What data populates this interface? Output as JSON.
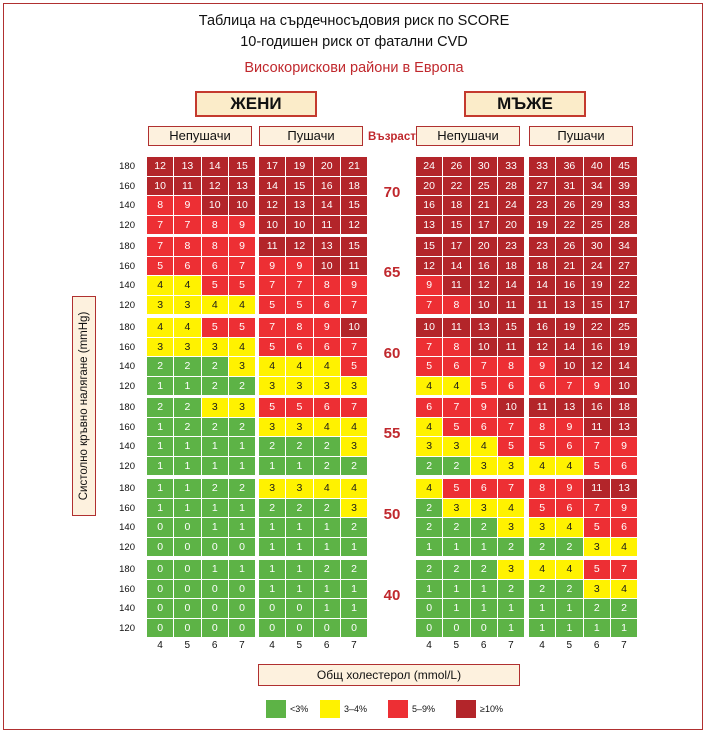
{
  "chart_data": {
    "type": "table",
    "title_line1": "Таблица на сърдечносъдовия риск по SCORE",
    "title_line2": "10-годишен риск от фатални CVD",
    "subtitle": "Високорискови райони в Европа",
    "gender_labels": {
      "women": "ЖЕНИ",
      "men": "МЪЖЕ"
    },
    "smoking_labels": {
      "nonsmoker": "Непушачи",
      "smoker": "Пушачи"
    },
    "age_header": "Възраст",
    "ylabel": "Систолно кръвно налягане (mmHg)",
    "xlabel": "Общ холестерол (mmol/L)",
    "bp_levels": [
      "180",
      "160",
      "140",
      "120"
    ],
    "cholesterol_levels": [
      "4",
      "5",
      "6",
      "7"
    ],
    "ages": [
      "70",
      "65",
      "60",
      "55",
      "50",
      "40"
    ],
    "legend": [
      {
        "label": "<3%",
        "color": "#5db346"
      },
      {
        "label": "3–4%",
        "color": "#fff200"
      },
      {
        "label": "5–9%",
        "color": "#ed2f34"
      },
      {
        "label": "≥10%",
        "color": "#b3252a"
      }
    ],
    "grids": {
      "women_nonsmoker": [
        [
          [
            12,
            13,
            14,
            15
          ],
          [
            10,
            11,
            12,
            13
          ],
          [
            8,
            9,
            10,
            10
          ],
          [
            7,
            7,
            8,
            9
          ]
        ],
        [
          [
            7,
            8,
            8,
            9
          ],
          [
            5,
            6,
            6,
            7
          ],
          [
            4,
            4,
            5,
            5
          ],
          [
            3,
            3,
            4,
            4
          ]
        ],
        [
          [
            4,
            4,
            5,
            5
          ],
          [
            3,
            3,
            3,
            4
          ],
          [
            2,
            2,
            2,
            3
          ],
          [
            1,
            1,
            2,
            2
          ]
        ],
        [
          [
            2,
            2,
            3,
            3
          ],
          [
            1,
            2,
            2,
            2
          ],
          [
            1,
            1,
            1,
            1
          ],
          [
            1,
            1,
            1,
            1
          ]
        ],
        [
          [
            1,
            1,
            2,
            2
          ],
          [
            1,
            1,
            1,
            1
          ],
          [
            0,
            0,
            1,
            1
          ],
          [
            0,
            0,
            0,
            0
          ]
        ],
        [
          [
            0,
            0,
            1,
            1
          ],
          [
            0,
            0,
            0,
            0
          ],
          [
            0,
            0,
            0,
            0
          ],
          [
            0,
            0,
            0,
            0
          ]
        ]
      ],
      "women_smoker": [
        [
          [
            17,
            19,
            20,
            21
          ],
          [
            14,
            15,
            16,
            18
          ],
          [
            12,
            13,
            14,
            15
          ],
          [
            10,
            10,
            11,
            12
          ]
        ],
        [
          [
            11,
            12,
            13,
            15
          ],
          [
            9,
            9,
            10,
            11
          ],
          [
            7,
            7,
            8,
            9
          ],
          [
            5,
            5,
            6,
            7
          ]
        ],
        [
          [
            7,
            8,
            9,
            10
          ],
          [
            5,
            6,
            6,
            7
          ],
          [
            4,
            4,
            4,
            5
          ],
          [
            3,
            3,
            3,
            3
          ]
        ],
        [
          [
            5,
            5,
            6,
            7
          ],
          [
            3,
            3,
            4,
            4
          ],
          [
            2,
            2,
            2,
            3
          ],
          [
            1,
            1,
            2,
            2
          ]
        ],
        [
          [
            3,
            3,
            4,
            4
          ],
          [
            2,
            2,
            2,
            3
          ],
          [
            1,
            1,
            1,
            2
          ],
          [
            1,
            1,
            1,
            1
          ]
        ],
        [
          [
            1,
            1,
            2,
            2
          ],
          [
            1,
            1,
            1,
            1
          ],
          [
            0,
            0,
            1,
            1
          ],
          [
            0,
            0,
            0,
            0
          ]
        ]
      ],
      "men_nonsmoker": [
        [
          [
            24,
            26,
            30,
            33
          ],
          [
            20,
            22,
            25,
            28
          ],
          [
            16,
            18,
            21,
            24
          ],
          [
            13,
            15,
            17,
            20
          ]
        ],
        [
          [
            15,
            17,
            20,
            23
          ],
          [
            12,
            14,
            16,
            18
          ],
          [
            9,
            11,
            12,
            14
          ],
          [
            7,
            8,
            10,
            11
          ]
        ],
        [
          [
            10,
            11,
            13,
            15
          ],
          [
            7,
            8,
            10,
            11
          ],
          [
            5,
            6,
            7,
            8
          ],
          [
            4,
            4,
            5,
            6
          ]
        ],
        [
          [
            6,
            7,
            9,
            10
          ],
          [
            4,
            5,
            6,
            7
          ],
          [
            3,
            3,
            4,
            5
          ],
          [
            2,
            2,
            3,
            3
          ]
        ],
        [
          [
            4,
            5,
            6,
            7
          ],
          [
            2,
            3,
            3,
            4
          ],
          [
            2,
            2,
            2,
            3
          ],
          [
            1,
            1,
            1,
            2
          ]
        ],
        [
          [
            2,
            2,
            2,
            3
          ],
          [
            1,
            1,
            1,
            2
          ],
          [
            0,
            1,
            1,
            1
          ],
          [
            0,
            0,
            0,
            1
          ]
        ]
      ],
      "men_smoker": [
        [
          [
            33,
            36,
            40,
            45
          ],
          [
            27,
            31,
            34,
            39
          ],
          [
            23,
            26,
            29,
            33
          ],
          [
            19,
            22,
            25,
            28
          ]
        ],
        [
          [
            23,
            26,
            30,
            34
          ],
          [
            18,
            21,
            24,
            27
          ],
          [
            14,
            16,
            19,
            22
          ],
          [
            11,
            13,
            15,
            17
          ]
        ],
        [
          [
            16,
            19,
            22,
            25
          ],
          [
            12,
            14,
            16,
            19
          ],
          [
            9,
            10,
            12,
            14
          ],
          [
            6,
            7,
            9,
            10
          ]
        ],
        [
          [
            11,
            13,
            16,
            18
          ],
          [
            8,
            9,
            11,
            13
          ],
          [
            5,
            6,
            7,
            9
          ],
          [
            4,
            4,
            5,
            6
          ]
        ],
        [
          [
            8,
            9,
            11,
            13
          ],
          [
            5,
            6,
            7,
            9
          ],
          [
            3,
            4,
            5,
            6
          ],
          [
            2,
            2,
            3,
            4
          ]
        ],
        [
          [
            4,
            4,
            5,
            7
          ],
          [
            2,
            2,
            3,
            4
          ],
          [
            1,
            1,
            2,
            2
          ],
          [
            1,
            1,
            1,
            1
          ]
        ]
      ]
    }
  }
}
